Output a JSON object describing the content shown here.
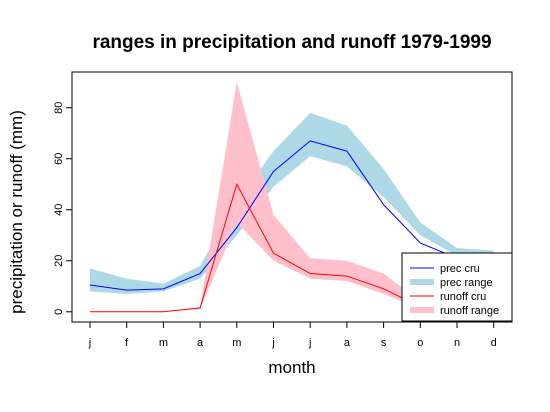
{
  "chart_data": {
    "type": "line",
    "title": "ranges in precipitation and runoff 1979-1999",
    "xlabel": "month",
    "ylabel": "precipitation or runoff (mm)",
    "categories": [
      "j",
      "f",
      "m",
      "a",
      "m",
      "j",
      "j",
      "a",
      "s",
      "o",
      "n",
      "d"
    ],
    "ylim": [
      -4,
      94
    ],
    "yticks": [
      0,
      20,
      40,
      60,
      80
    ],
    "grid": false,
    "legend_position": "bottom-right",
    "series": [
      {
        "name": "prec range",
        "kind": "band",
        "color": "#add8e6",
        "lower": [
          8,
          7,
          8,
          13,
          30,
          49,
          61,
          57,
          45,
          30,
          22,
          22
        ],
        "upper": [
          17,
          13,
          11,
          18,
          43,
          63,
          78,
          73,
          56,
          35,
          25,
          24
        ]
      },
      {
        "name": "runoff range",
        "kind": "band",
        "color": "#ffc0cb",
        "lower": [
          0,
          0,
          0,
          1,
          35,
          20,
          13,
          12,
          7,
          1,
          0,
          0
        ],
        "upper": [
          0,
          0,
          0,
          2,
          90,
          38,
          21,
          20,
          15,
          4,
          0,
          0
        ]
      },
      {
        "name": "prec cru",
        "kind": "line",
        "color": "#0000ff",
        "values": [
          10.5,
          8.5,
          9,
          15,
          33,
          55,
          67,
          63,
          42,
          27,
          21,
          21
        ]
      },
      {
        "name": "runoff cru",
        "kind": "line",
        "color": "#ff0000",
        "values": [
          0,
          0,
          0,
          1.5,
          50,
          23,
          15,
          14,
          9,
          2,
          0,
          0
        ]
      }
    ],
    "legend": [
      "prec cru",
      "prec range",
      "runoff cru",
      "runoff range"
    ]
  }
}
